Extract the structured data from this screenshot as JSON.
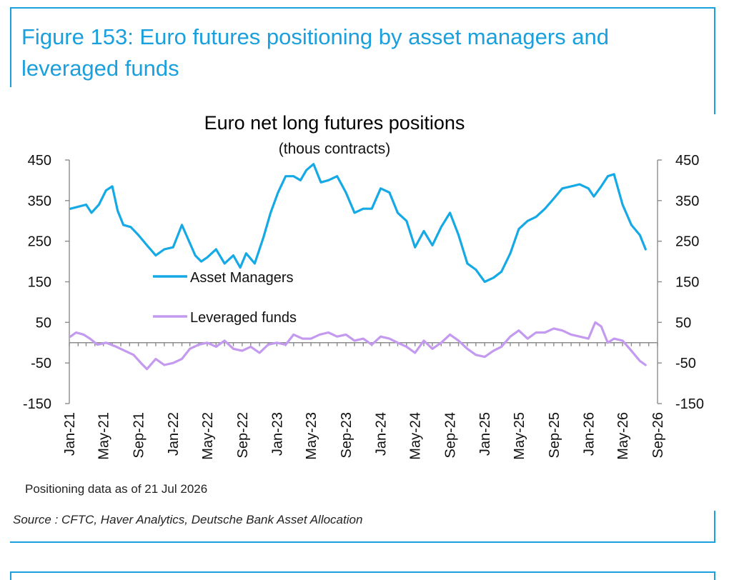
{
  "figure": {
    "title": "Figure 153: Euro futures positioning by asset managers and leveraged funds",
    "footnote": "Positioning data as of 21 Jul 2026",
    "source": "Source : CFTC, Haver Analytics, Deutsche Bank Asset Allocation"
  },
  "colors": {
    "frame": "#1AA0DD",
    "title": "#1AA0DD",
    "asset_managers": "#15A9E6",
    "leveraged_funds": "#C49AF0",
    "axis": "#8C8C8C"
  },
  "chart_data": {
    "type": "line",
    "title": "Euro net long futures positions",
    "subtitle": "(thous contracts)",
    "xlabel": "",
    "ylabel": "",
    "ylim": [
      -150,
      450
    ],
    "yticks": [
      450,
      350,
      250,
      150,
      50,
      -50,
      -150
    ],
    "ytick_labels": [
      "450",
      "350",
      "250",
      "150",
      "50",
      "-50",
      "-150"
    ],
    "xlim": [
      "2021-01-01",
      "2026-09-01"
    ],
    "xtick_labels": [
      "Jan-21",
      "May-21",
      "Sep-21",
      "Jan-22",
      "May-22",
      "Sep-22",
      "Jan-23",
      "May-23",
      "Sep-23",
      "Jan-24",
      "May-24",
      "Sep-24",
      "Jan-25",
      "May-25",
      "Sep-25",
      "Jan-26",
      "May-26",
      "Sep-26"
    ],
    "xtick_dates": [
      "2021-01-01",
      "2021-05-01",
      "2021-09-01",
      "2022-01-01",
      "2022-05-01",
      "2022-09-01",
      "2023-01-01",
      "2023-05-01",
      "2023-09-01",
      "2024-01-01",
      "2024-05-01",
      "2024-09-01",
      "2025-01-01",
      "2025-05-01",
      "2025-09-01",
      "2026-01-01",
      "2026-05-01",
      "2026-09-01"
    ],
    "legend": "center-left",
    "grid": false,
    "dual_y_axis": true,
    "series": [
      {
        "name": "Asset Managers",
        "color": "#15A9E6",
        "x": [
          "2021-01-05",
          "2021-02-01",
          "2021-03-01",
          "2021-03-20",
          "2021-04-15",
          "2021-05-10",
          "2021-06-01",
          "2021-06-20",
          "2021-07-10",
          "2021-08-05",
          "2021-09-01",
          "2021-10-01",
          "2021-11-01",
          "2021-12-01",
          "2022-01-01",
          "2022-02-01",
          "2022-03-01",
          "2022-03-20",
          "2022-04-10",
          "2022-05-01",
          "2022-06-01",
          "2022-07-01",
          "2022-08-01",
          "2022-08-25",
          "2022-09-15",
          "2022-10-15",
          "2022-11-15",
          "2022-12-10",
          "2023-01-05",
          "2023-02-01",
          "2023-03-01",
          "2023-03-25",
          "2023-04-15",
          "2023-05-10",
          "2023-06-05",
          "2023-07-01",
          "2023-08-01",
          "2023-09-01",
          "2023-10-01",
          "2023-11-01",
          "2023-12-01",
          "2024-01-01",
          "2024-02-01",
          "2024-03-01",
          "2024-04-01",
          "2024-05-01",
          "2024-06-01",
          "2024-07-01",
          "2024-08-01",
          "2024-09-01",
          "2024-10-01",
          "2024-11-01",
          "2024-12-01",
          "2025-01-01",
          "2025-02-01",
          "2025-03-01",
          "2025-04-01",
          "2025-05-01",
          "2025-06-01",
          "2025-07-01",
          "2025-08-01",
          "2025-09-01",
          "2025-10-01",
          "2025-11-01",
          "2025-12-01",
          "2026-01-01",
          "2026-01-20",
          "2026-02-15",
          "2026-03-10",
          "2026-04-01",
          "2026-05-01",
          "2026-06-01",
          "2026-07-01",
          "2026-07-21"
        ],
        "values": [
          330,
          335,
          340,
          320,
          340,
          375,
          385,
          325,
          290,
          285,
          265,
          240,
          215,
          230,
          235,
          290,
          245,
          215,
          200,
          210,
          230,
          195,
          215,
          185,
          220,
          195,
          260,
          320,
          370,
          410,
          410,
          400,
          425,
          440,
          395,
          400,
          410,
          370,
          320,
          330,
          330,
          380,
          370,
          320,
          300,
          235,
          275,
          240,
          285,
          320,
          265,
          195,
          180,
          150,
          160,
          175,
          220,
          280,
          300,
          310,
          330,
          355,
          380,
          385,
          390,
          380,
          360,
          385,
          410,
          415,
          340,
          290,
          265,
          230
        ],
        "values_start": "2021-01-05"
      },
      {
        "name": "Leveraged funds",
        "color": "#C49AF0",
        "x": [
          "2021-01-05",
          "2021-01-25",
          "2021-02-20",
          "2021-03-15",
          "2021-04-10",
          "2021-05-10",
          "2021-06-15",
          "2021-07-15",
          "2021-08-15",
          "2021-09-10",
          "2021-10-01",
          "2021-11-01",
          "2021-12-01",
          "2022-01-01",
          "2022-02-01",
          "2022-03-01",
          "2022-04-01",
          "2022-05-01",
          "2022-06-01",
          "2022-07-01",
          "2022-08-01",
          "2022-09-01",
          "2022-10-01",
          "2022-11-01",
          "2022-12-01",
          "2023-01-01",
          "2023-02-01",
          "2023-03-01",
          "2023-04-01",
          "2023-05-01",
          "2023-06-01",
          "2023-07-01",
          "2023-08-01",
          "2023-09-01",
          "2023-10-01",
          "2023-11-01",
          "2023-12-01",
          "2024-01-01",
          "2024-02-01",
          "2024-03-01",
          "2024-04-01",
          "2024-05-01",
          "2024-06-01",
          "2024-07-01",
          "2024-08-01",
          "2024-09-01",
          "2024-10-01",
          "2024-11-01",
          "2024-12-01",
          "2025-01-01",
          "2025-02-01",
          "2025-03-01",
          "2025-04-01",
          "2025-05-01",
          "2025-06-01",
          "2025-07-01",
          "2025-08-01",
          "2025-09-01",
          "2025-10-01",
          "2025-11-01",
          "2025-12-01",
          "2026-01-01",
          "2026-01-25",
          "2026-02-15",
          "2026-03-10",
          "2026-04-01",
          "2026-05-01",
          "2026-06-01",
          "2026-07-01",
          "2026-07-21"
        ],
        "values": [
          15,
          25,
          20,
          10,
          -5,
          0,
          -10,
          -20,
          -30,
          -50,
          -65,
          -40,
          -55,
          -50,
          -40,
          -15,
          -5,
          0,
          -10,
          5,
          -15,
          -20,
          -10,
          -25,
          -5,
          0,
          -5,
          20,
          10,
          10,
          20,
          25,
          15,
          20,
          5,
          10,
          -5,
          15,
          10,
          0,
          -10,
          -25,
          5,
          -15,
          0,
          20,
          5,
          -15,
          -30,
          -35,
          -20,
          -10,
          15,
          30,
          10,
          25,
          25,
          35,
          30,
          20,
          15,
          10,
          50,
          40,
          0,
          10,
          5,
          -20,
          -45,
          -55
        ]
      }
    ]
  }
}
